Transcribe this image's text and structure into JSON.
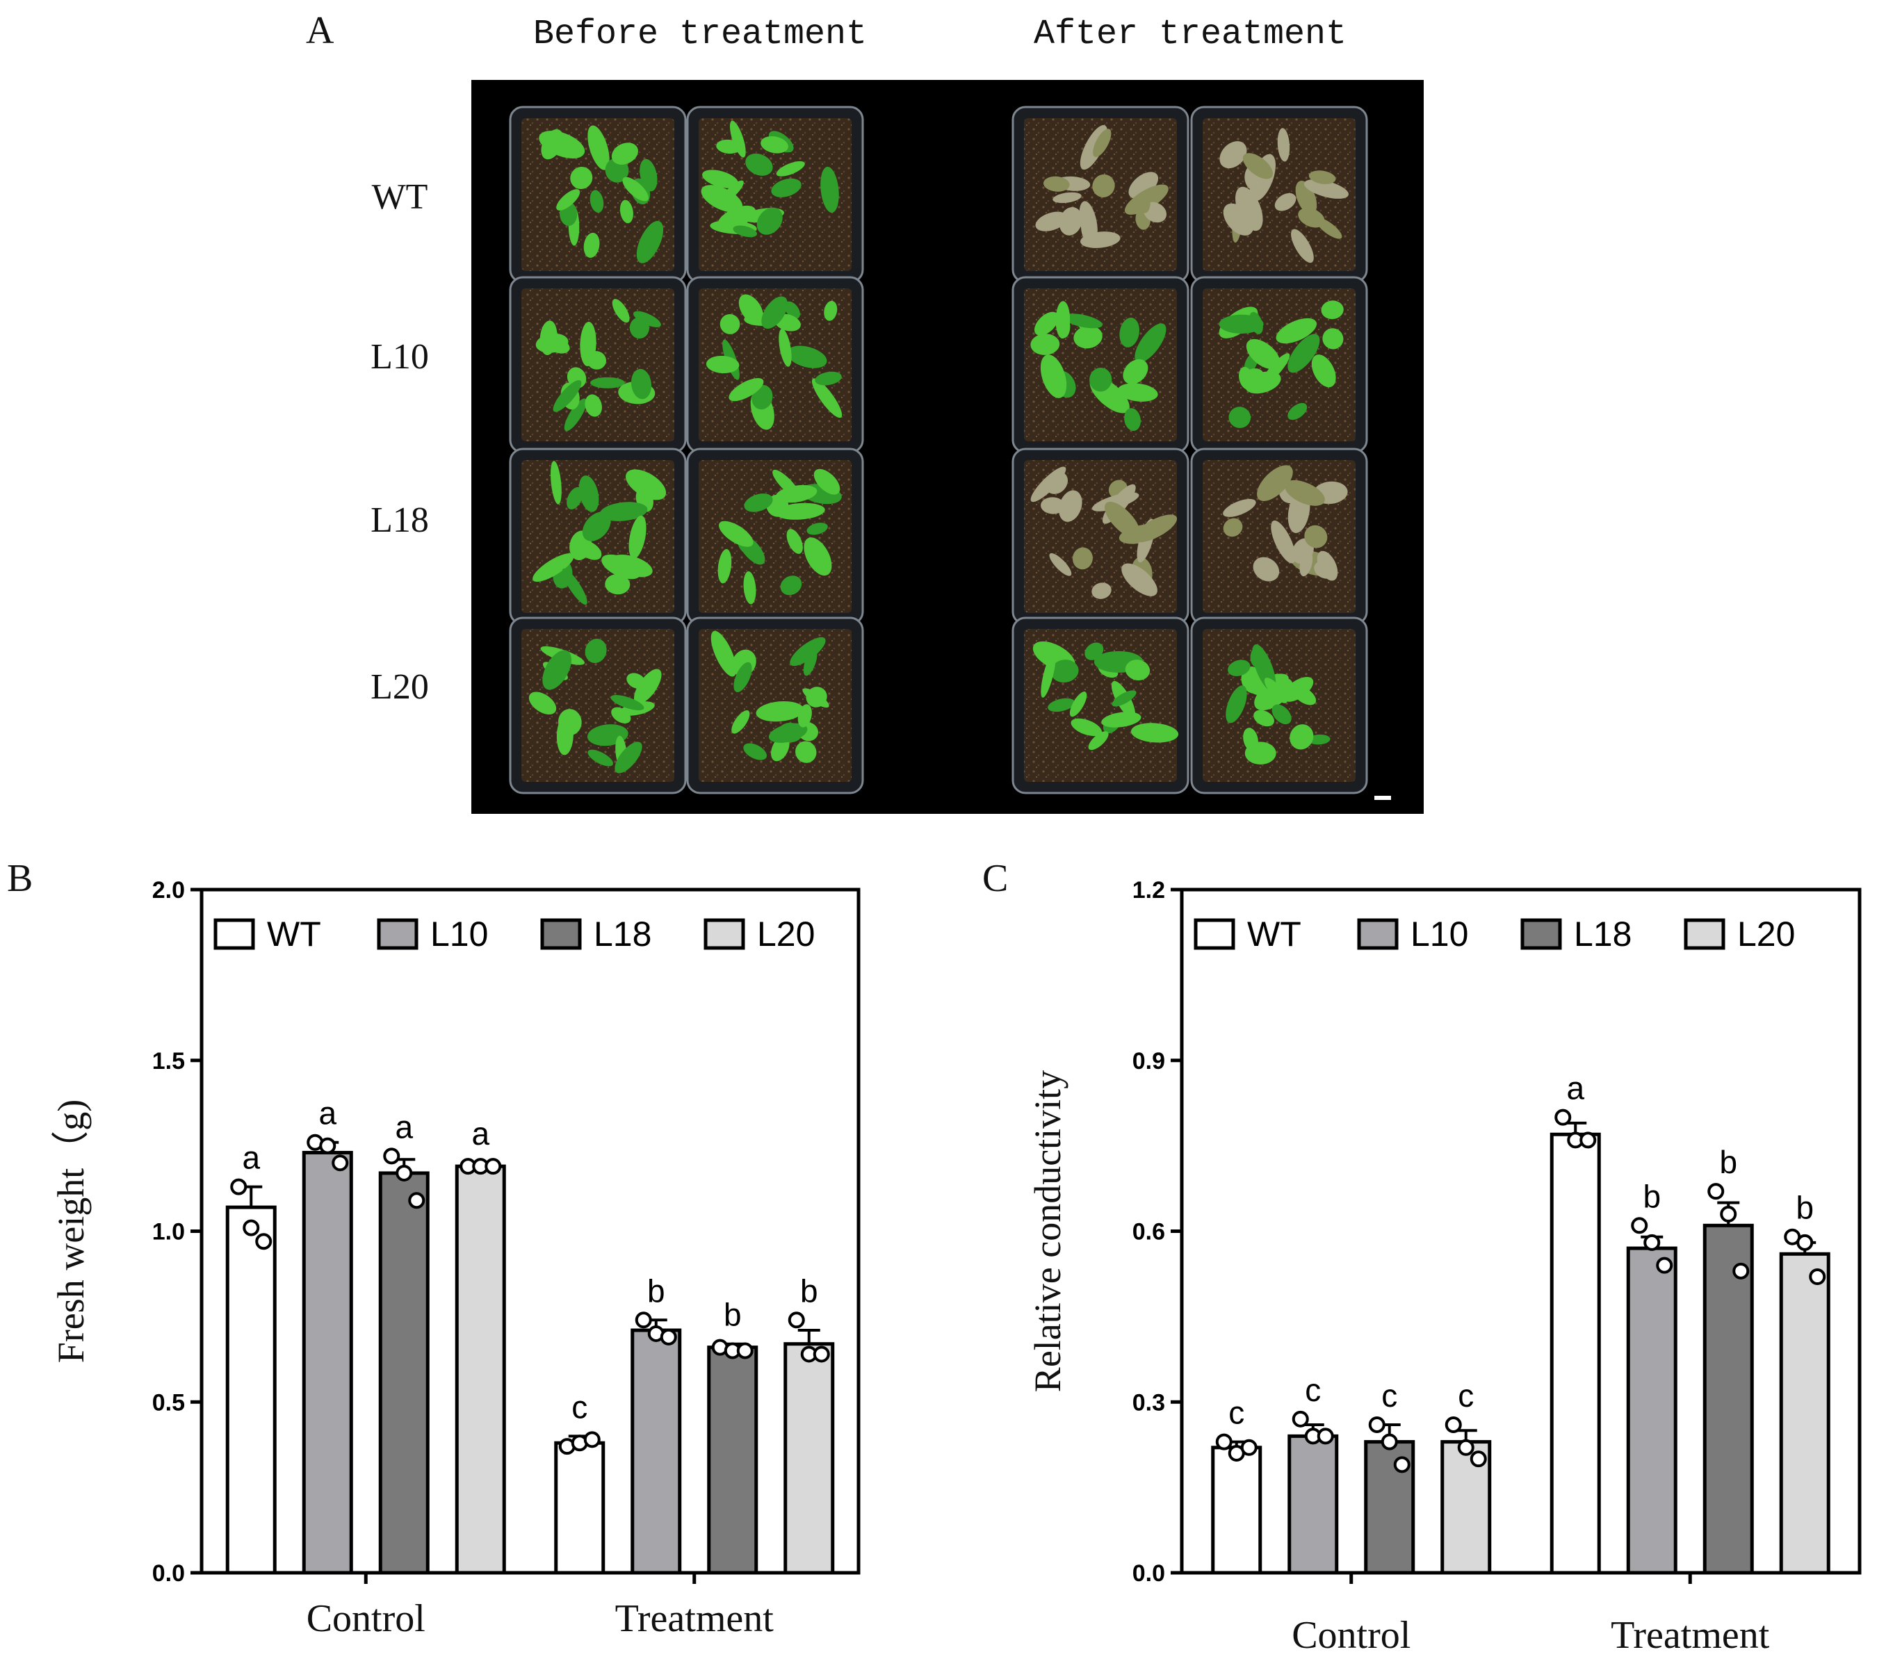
{
  "panel_a": {
    "label": "A",
    "before_title": "Before treatment",
    "after_title": "After treatment",
    "row_labels": [
      "WT",
      "L10",
      "L18",
      "L20"
    ],
    "photo_background": "#000000",
    "plant_color_healthy": "#4fc93a",
    "plant_color_stressed": "#a7a585"
  },
  "chart_data": [
    {
      "panel_label": "B",
      "type": "bar",
      "categories": [
        "Control",
        "Treatment"
      ],
      "series": [
        {
          "name": "WT",
          "values": [
            1.07,
            0.38
          ],
          "errors": [
            0.06,
            0.02
          ],
          "points": [
            [
              1.13,
              1.01,
              0.97
            ],
            [
              0.37,
              0.38,
              0.39
            ]
          ],
          "letters": [
            "a",
            "c"
          ],
          "color": "#ffffff"
        },
        {
          "name": "L10",
          "values": [
            1.23,
            0.71
          ],
          "errors": [
            0.03,
            0.03
          ],
          "points": [
            [
              1.26,
              1.25,
              1.2
            ],
            [
              0.74,
              0.7,
              0.69
            ]
          ],
          "letters": [
            "a",
            "b"
          ],
          "color": "#a6a6aa"
        },
        {
          "name": "L18",
          "values": [
            1.17,
            0.66
          ],
          "errors": [
            0.04,
            0.01
          ],
          "points": [
            [
              1.22,
              1.17,
              1.09
            ],
            [
              0.66,
              0.65,
              0.65
            ]
          ],
          "letters": [
            "a",
            "b"
          ],
          "color": "#7a7a7a"
        },
        {
          "name": "L20",
          "values": [
            1.19,
            0.67
          ],
          "errors": [
            0.01,
            0.04
          ],
          "points": [
            [
              1.19,
              1.19,
              1.19
            ],
            [
              0.74,
              0.64,
              0.64
            ]
          ],
          "letters": [
            "a",
            "b"
          ],
          "color": "#d9d9d9"
        }
      ],
      "ylabel": "Fresh weight（g)",
      "xlabel": "",
      "ylim": [
        0,
        2.0
      ],
      "yticks": [
        "0.0",
        "0.5",
        "1.0",
        "1.5",
        "2.0"
      ],
      "legend": "top inside, horizontal",
      "grid": false
    },
    {
      "panel_label": "C",
      "type": "bar",
      "categories": [
        "Control",
        "Treatment"
      ],
      "series": [
        {
          "name": "WT",
          "values": [
            0.22,
            0.77
          ],
          "errors": [
            0.01,
            0.02
          ],
          "points": [
            [
              0.23,
              0.21,
              0.22
            ],
            [
              0.8,
              0.76,
              0.76
            ]
          ],
          "letters": [
            "c",
            "a"
          ],
          "color": "#ffffff"
        },
        {
          "name": "L10",
          "values": [
            0.24,
            0.57
          ],
          "errors": [
            0.02,
            0.02
          ],
          "points": [
            [
              0.27,
              0.24,
              0.24
            ],
            [
              0.61,
              0.58,
              0.54
            ]
          ],
          "letters": [
            "c",
            "b"
          ],
          "color": "#a6a6aa"
        },
        {
          "name": "L18",
          "values": [
            0.23,
            0.61
          ],
          "errors": [
            0.03,
            0.04
          ],
          "points": [
            [
              0.26,
              0.23,
              0.19
            ],
            [
              0.67,
              0.63,
              0.53
            ]
          ],
          "letters": [
            "c",
            "b"
          ],
          "color": "#7a7a7a"
        },
        {
          "name": "L20",
          "values": [
            0.23,
            0.56
          ],
          "errors": [
            0.02,
            0.02
          ],
          "points": [
            [
              0.26,
              0.22,
              0.2
            ],
            [
              0.59,
              0.58,
              0.52
            ]
          ],
          "letters": [
            "c",
            "b"
          ],
          "color": "#d9d9d9"
        }
      ],
      "ylabel": "Relative conductivity",
      "xlabel": "",
      "ylim": [
        0,
        1.2
      ],
      "yticks": [
        "0.0",
        "0.3",
        "0.6",
        "0.9",
        "1.2"
      ],
      "legend": "top inside, horizontal",
      "grid": false
    }
  ]
}
